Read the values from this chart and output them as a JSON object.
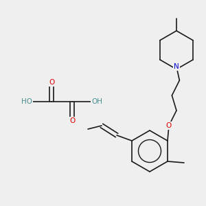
{
  "background_color": "#efefef",
  "bond_color": "#1a1a1a",
  "atom_colors": {
    "O": "#dd0000",
    "N": "#0000cc",
    "H": "#4a8f8f",
    "C": "#1a1a1a"
  },
  "lw": 1.2,
  "fs": 7.5
}
